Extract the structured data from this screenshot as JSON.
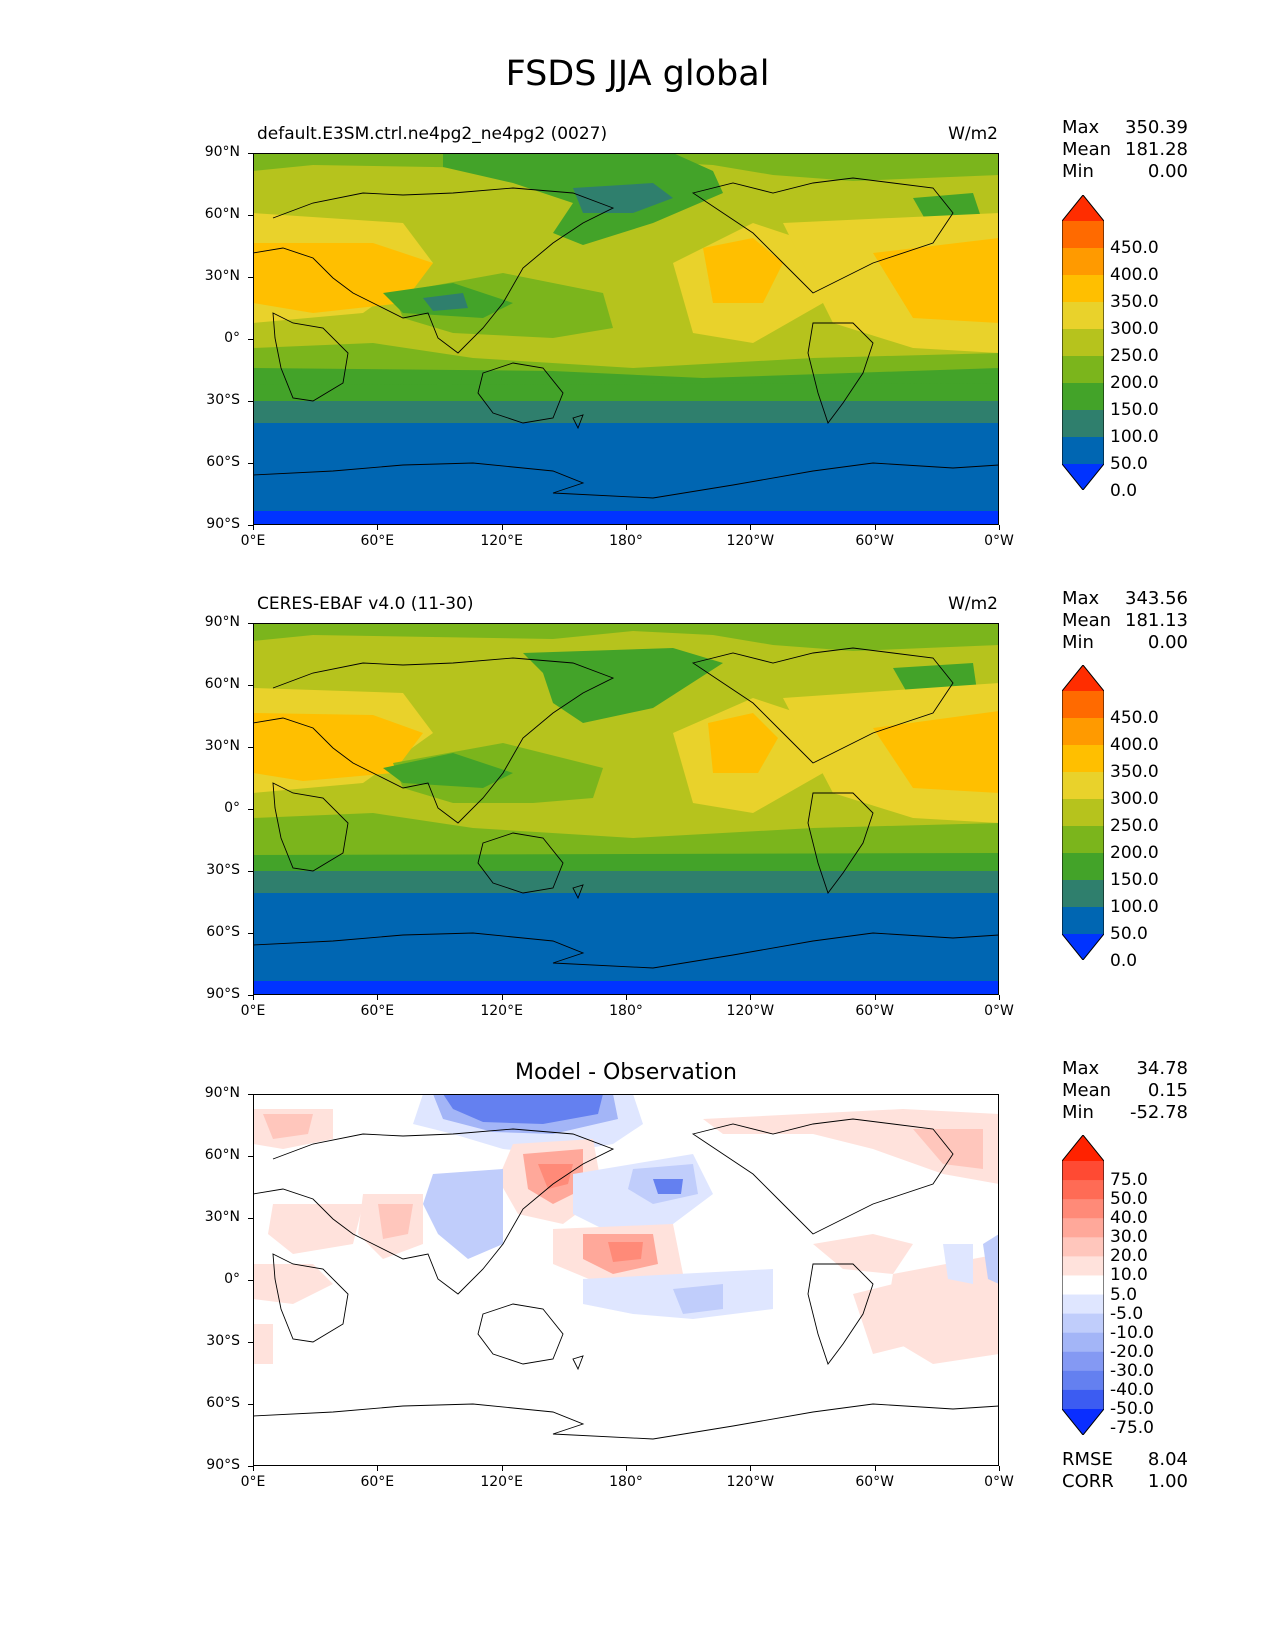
{
  "figure": {
    "title": "FSDS JJA global"
  },
  "axes": {
    "lat_ticks": [
      "90°N",
      "60°N",
      "30°N",
      "0°",
      "30°S",
      "60°S",
      "90°S"
    ],
    "lon_ticks": [
      "0°E",
      "60°E",
      "120°E",
      "180°",
      "120°W",
      "60°W",
      "0°W"
    ]
  },
  "panels": [
    {
      "id": "model",
      "title_left": "default.E3SM.ctrl.ne4pg2_ne4pg2 (0027)",
      "title_center": "",
      "units": "W/m2",
      "stats": [
        {
          "label": "Max",
          "value": "350.39"
        },
        {
          "label": "Mean",
          "value": "181.28"
        },
        {
          "label": "Min",
          "value": "0.00"
        }
      ],
      "levels": [
        "450.0",
        "400.0",
        "350.0",
        "300.0",
        "250.0",
        "200.0",
        "150.0",
        "100.0",
        "50.0",
        "0.0"
      ],
      "colors": [
        "#ff2d00",
        "#ff6a00",
        "#ff9a00",
        "#ffbf00",
        "#e9d22b",
        "#b6c31d",
        "#7bb51c",
        "#43a329",
        "#2f7f6d",
        "#0066b2",
        "#0033ff"
      ]
    },
    {
      "id": "obs",
      "title_left": "CERES-EBAF v4.0 (11-30)",
      "title_center": "",
      "units": "W/m2",
      "stats": [
        {
          "label": "Max",
          "value": "343.56"
        },
        {
          "label": "Mean",
          "value": "181.13"
        },
        {
          "label": "Min",
          "value": "0.00"
        }
      ],
      "levels": [
        "450.0",
        "400.0",
        "350.0",
        "300.0",
        "250.0",
        "200.0",
        "150.0",
        "100.0",
        "50.0",
        "0.0"
      ],
      "colors": [
        "#ff2d00",
        "#ff6a00",
        "#ff9a00",
        "#ffbf00",
        "#e9d22b",
        "#b6c31d",
        "#7bb51c",
        "#43a329",
        "#2f7f6d",
        "#0066b2",
        "#0033ff"
      ]
    },
    {
      "id": "diff",
      "title_left": "",
      "title_center": "Model - Observation",
      "units": "",
      "stats": [
        {
          "label": "Max",
          "value": "34.78"
        },
        {
          "label": "Mean",
          "value": "0.15"
        },
        {
          "label": "Min",
          "value": "-52.78"
        }
      ],
      "levels": [
        "75.0",
        "50.0",
        "40.0",
        "30.0",
        "20.0",
        "10.0",
        "5.0",
        "-5.0",
        "-10.0",
        "-20.0",
        "-30.0",
        "-40.0",
        "-50.0",
        "-75.0"
      ],
      "colors": [
        "#ff2200",
        "#ff4a33",
        "#ff6b55",
        "#ff8a78",
        "#ffa89a",
        "#ffc6bc",
        "#ffe2dc",
        "#ffffff",
        "#dfe6ff",
        "#c0cdfb",
        "#a3b5f7",
        "#8499f3",
        "#6480f0",
        "#3c5cf2",
        "#0a2eff"
      ],
      "extra": [
        {
          "label": "RMSE",
          "value": "8.04"
        },
        {
          "label": "CORR",
          "value": "1.00"
        }
      ]
    }
  ]
}
